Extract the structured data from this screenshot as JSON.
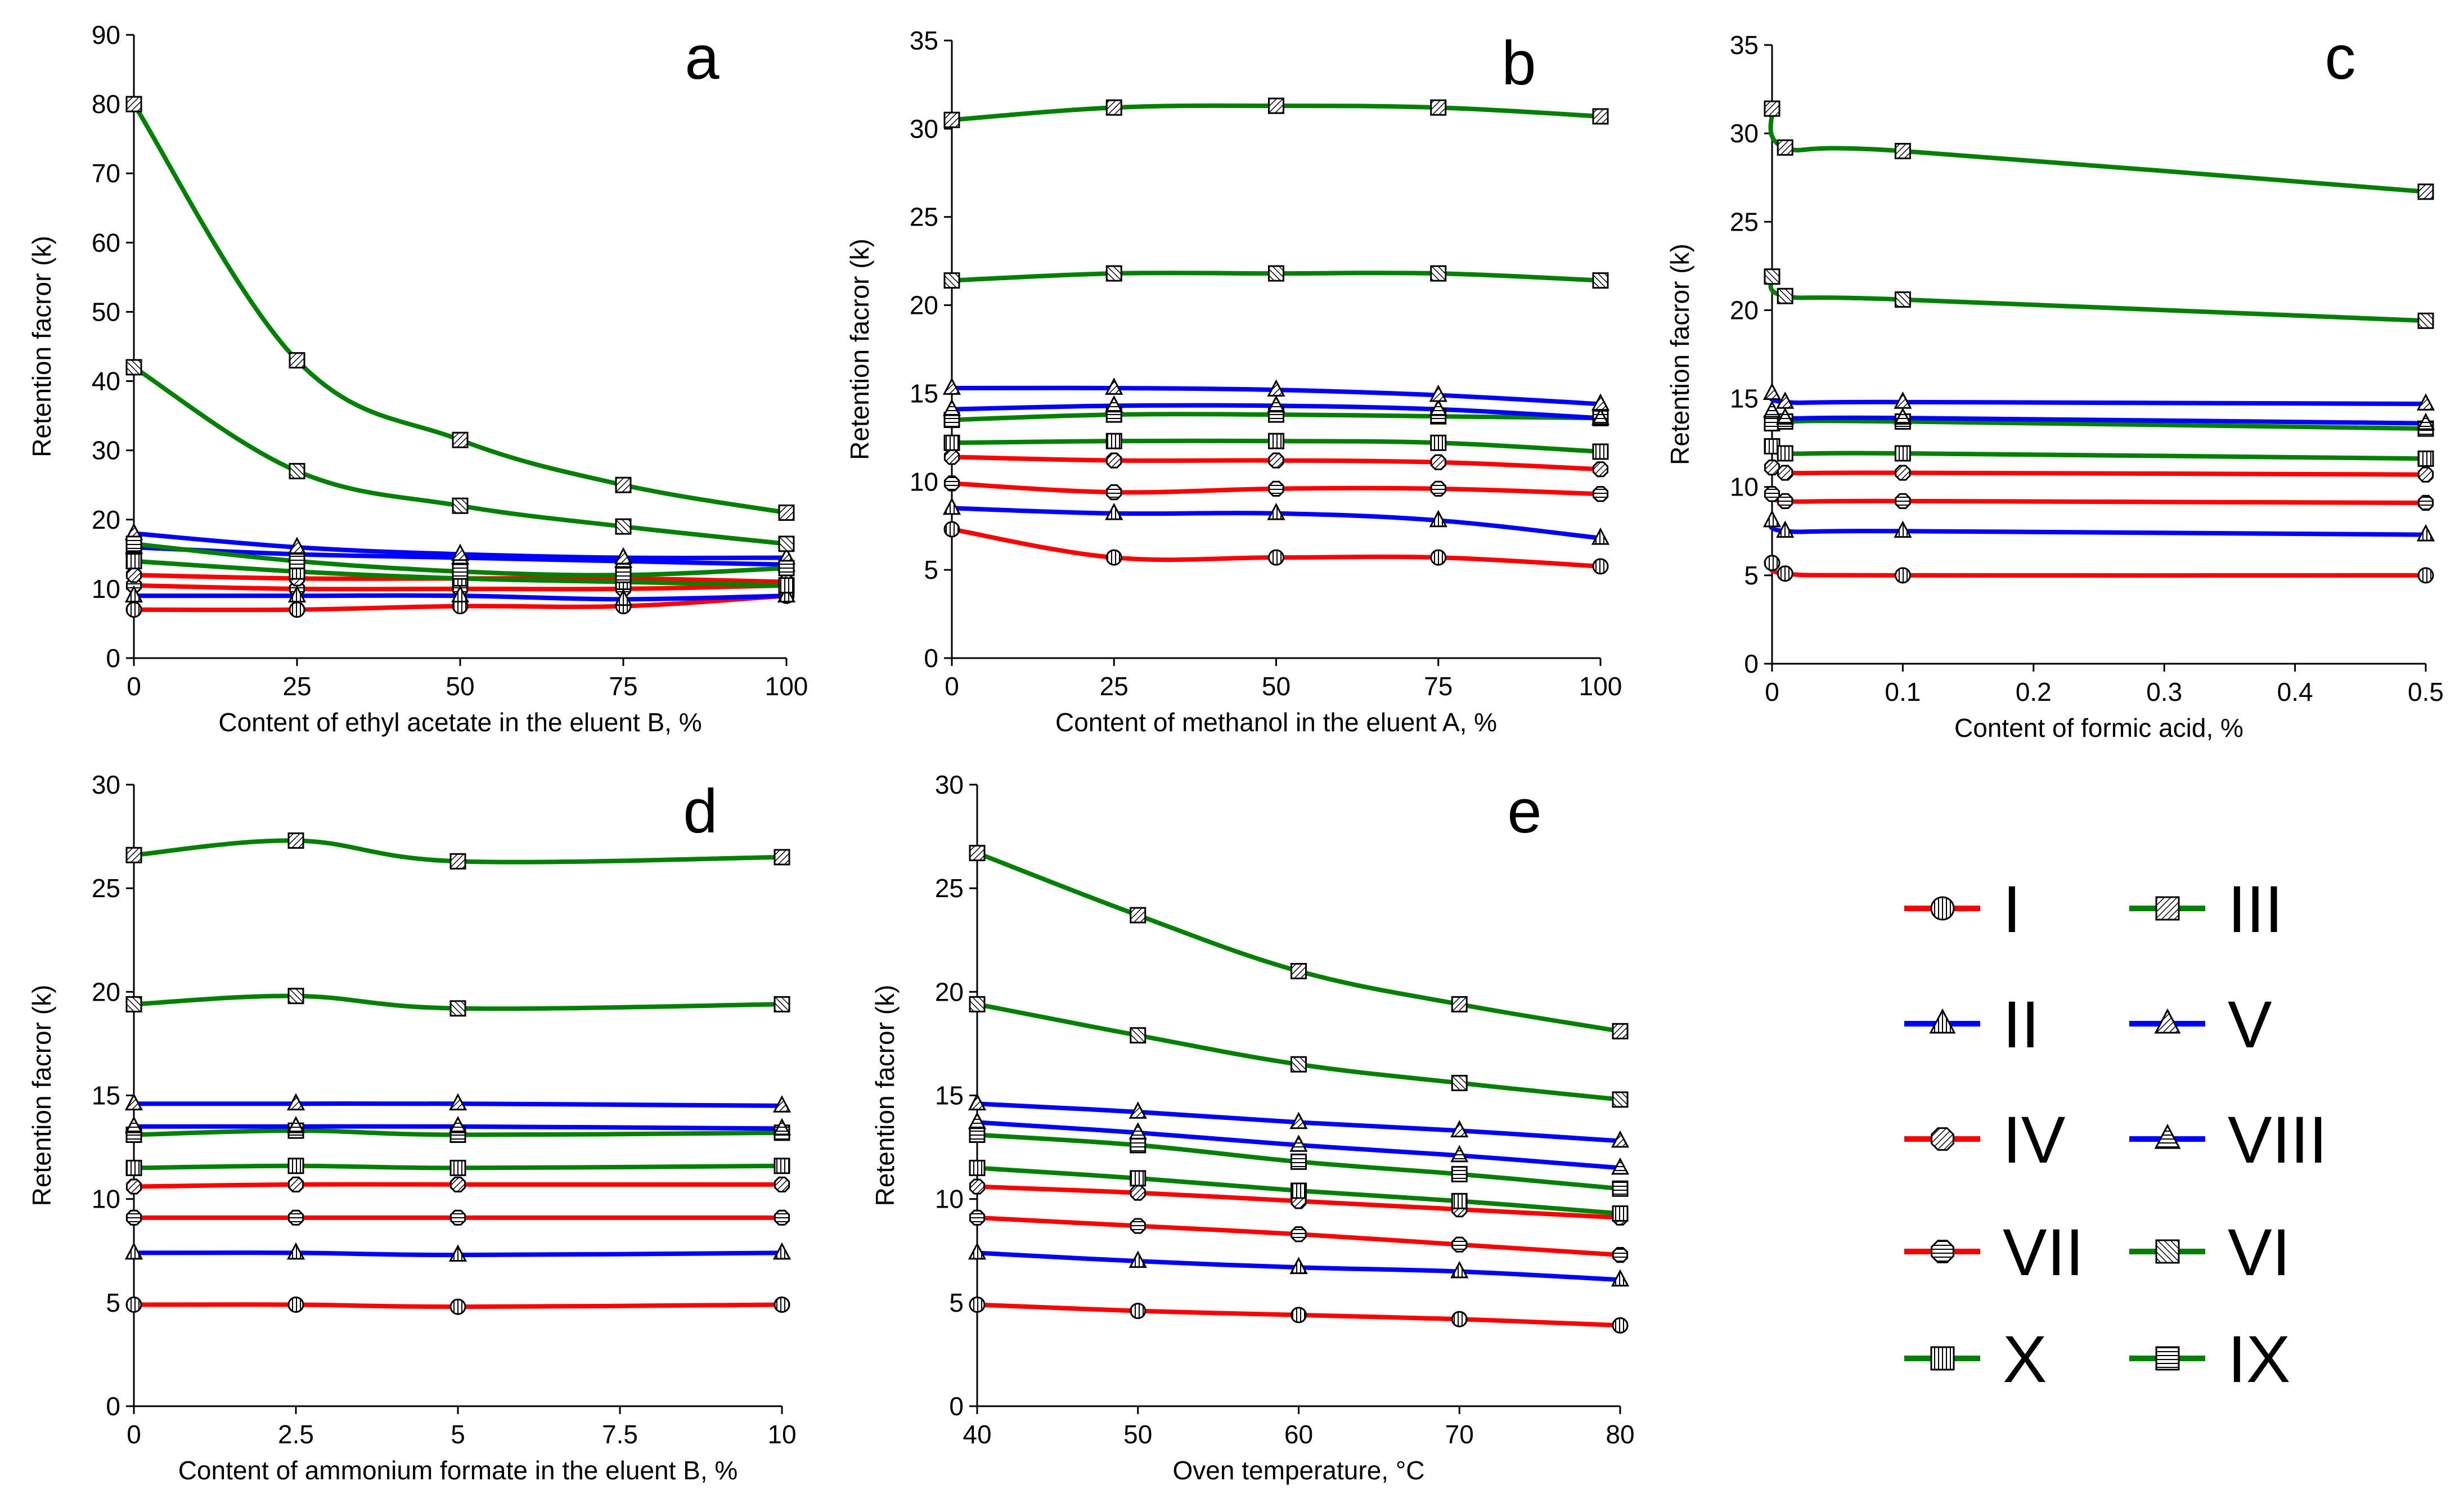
{
  "series_styles": {
    "I": {
      "color": "#ff0000",
      "marker": "circle",
      "hatch": "vlines"
    },
    "II": {
      "color": "#0000ff",
      "marker": "triangle",
      "hatch": "vlines"
    },
    "III": {
      "color": "#008000",
      "marker": "square",
      "hatch": "diag"
    },
    "IV": {
      "color": "#ff0000",
      "marker": "octagon",
      "hatch": "diag"
    },
    "V": {
      "color": "#0000ff",
      "marker": "triangle",
      "hatch": "diag"
    },
    "VI": {
      "color": "#008000",
      "marker": "square",
      "hatch": "diag2"
    },
    "VII": {
      "color": "#ff0000",
      "marker": "octagon",
      "hatch": "hlines"
    },
    "VIII": {
      "color": "#0000ff",
      "marker": "triangle",
      "hatch": "hlines"
    },
    "IX": {
      "color": "#008000",
      "marker": "square",
      "hatch": "hlines"
    },
    "X": {
      "color": "#008000",
      "marker": "square",
      "hatch": "vlines"
    }
  },
  "legend": {
    "left": [
      "I",
      "II",
      "IV",
      "VII",
      "X"
    ],
    "right": [
      "III",
      "V",
      "VIII",
      "VI",
      "IX"
    ]
  },
  "chart_data": [
    {
      "id": "a",
      "type": "line",
      "letter": "a",
      "xlabel": "Content of ethyl acetate in the eluent B, %",
      "ylabel": "Retention facror (k)",
      "x": [
        0,
        25,
        50,
        75,
        100
      ],
      "xlim": [
        0,
        100
      ],
      "xticks": [
        0,
        25,
        50,
        75,
        100
      ],
      "xtick_labels": [
        "0",
        "25",
        "50",
        "75",
        "100"
      ],
      "ylim": [
        0,
        90
      ],
      "yticks": [
        0,
        10,
        20,
        30,
        40,
        50,
        60,
        70,
        80,
        90
      ],
      "series": [
        {
          "name": "I",
          "values": [
            7,
            7,
            7.5,
            7.5,
            9
          ]
        },
        {
          "name": "VII",
          "values": [
            10.5,
            10,
            10,
            10,
            10.5
          ]
        },
        {
          "name": "IV",
          "values": [
            12,
            11.5,
            11.5,
            11.5,
            11
          ]
        },
        {
          "name": "II",
          "values": [
            9,
            9,
            9,
            8.5,
            9
          ]
        },
        {
          "name": "VIII",
          "values": [
            16,
            15,
            14.5,
            14,
            13.5
          ]
        },
        {
          "name": "V",
          "values": [
            18,
            16,
            15,
            14.5,
            14.5
          ]
        },
        {
          "name": "X",
          "values": [
            14,
            12.5,
            11.5,
            11,
            10.5
          ]
        },
        {
          "name": "IX",
          "values": [
            16.5,
            14,
            12.5,
            12,
            13
          ]
        },
        {
          "name": "VI",
          "values": [
            42,
            27,
            22,
            19,
            16.5
          ]
        },
        {
          "name": "III",
          "values": [
            80,
            43,
            31.5,
            25,
            21
          ]
        }
      ]
    },
    {
      "id": "b",
      "type": "line",
      "letter": "b",
      "xlabel": "Content of methanol in the eluent A, %",
      "ylabel": "Retention facror (k)",
      "x": [
        0,
        25,
        50,
        75,
        100
      ],
      "xlim": [
        0,
        100
      ],
      "xticks": [
        0,
        25,
        50,
        75,
        100
      ],
      "xtick_labels": [
        "0",
        "25",
        "50",
        "75",
        "100"
      ],
      "ylim": [
        0,
        35
      ],
      "yticks": [
        0,
        5,
        10,
        15,
        20,
        25,
        30,
        35
      ],
      "series": [
        {
          "name": "I",
          "values": [
            7.3,
            5.7,
            5.7,
            5.7,
            5.2
          ]
        },
        {
          "name": "II",
          "values": [
            8.5,
            8.2,
            8.2,
            7.8,
            6.8
          ]
        },
        {
          "name": "VII",
          "values": [
            9.9,
            9.4,
            9.6,
            9.6,
            9.3
          ]
        },
        {
          "name": "IV",
          "values": [
            11.4,
            11.2,
            11.2,
            11.1,
            10.7
          ]
        },
        {
          "name": "X",
          "values": [
            12.2,
            12.3,
            12.3,
            12.2,
            11.7
          ]
        },
        {
          "name": "IX",
          "values": [
            13.5,
            13.8,
            13.8,
            13.7,
            13.6
          ]
        },
        {
          "name": "VIII",
          "values": [
            14.1,
            14.3,
            14.3,
            14.1,
            13.6
          ]
        },
        {
          "name": "V",
          "values": [
            15.3,
            15.3,
            15.2,
            14.9,
            14.4
          ]
        },
        {
          "name": "VI",
          "values": [
            21.4,
            21.8,
            21.8,
            21.8,
            21.4
          ]
        },
        {
          "name": "III",
          "values": [
            30.5,
            31.2,
            31.3,
            31.2,
            30.7
          ]
        }
      ]
    },
    {
      "id": "c",
      "type": "line",
      "letter": "c",
      "xlabel": "Content of formic acid, %",
      "ylabel": "Retention facror (k)",
      "x": [
        0,
        0.01,
        0.1,
        0.5
      ],
      "xlim": [
        0,
        0.5
      ],
      "xticks": [
        0,
        0.1,
        0.2,
        0.3,
        0.4,
        0.5
      ],
      "xtick_labels": [
        "0",
        "0.1",
        "0.2",
        "0.3",
        "0.4",
        "0.5"
      ],
      "ylim": [
        0,
        35
      ],
      "yticks": [
        0,
        5,
        10,
        15,
        20,
        25,
        30,
        35
      ],
      "series": [
        {
          "name": "I",
          "values": [
            5.7,
            5.1,
            5.0,
            5.0
          ]
        },
        {
          "name": "II",
          "values": [
            8.1,
            7.5,
            7.5,
            7.3
          ]
        },
        {
          "name": "VII",
          "values": [
            9.6,
            9.2,
            9.2,
            9.1
          ]
        },
        {
          "name": "IV",
          "values": [
            11.1,
            10.8,
            10.8,
            10.7
          ]
        },
        {
          "name": "X",
          "values": [
            12.3,
            11.9,
            11.9,
            11.6
          ]
        },
        {
          "name": "IX",
          "values": [
            13.6,
            13.7,
            13.7,
            13.3
          ]
        },
        {
          "name": "VIII",
          "values": [
            14.3,
            13.9,
            13.9,
            13.6
          ]
        },
        {
          "name": "V",
          "values": [
            15.3,
            14.8,
            14.8,
            14.7
          ]
        },
        {
          "name": "VI",
          "values": [
            21.9,
            20.8,
            20.6,
            19.4
          ]
        },
        {
          "name": "III",
          "values": [
            31.4,
            29.2,
            29.0,
            26.7
          ]
        }
      ]
    },
    {
      "id": "d",
      "type": "line",
      "letter": "d",
      "xlabel": "Content of ammonium formate in the eluent B, %",
      "ylabel": "Retention facror (k)",
      "x": [
        0,
        2.5,
        5,
        10
      ],
      "xlim": [
        0,
        10
      ],
      "xticks": [
        0,
        2.5,
        5,
        7.5,
        10
      ],
      "xtick_labels": [
        "0",
        "2.5",
        "5",
        "7.5",
        "10"
      ],
      "ylim": [
        0,
        30
      ],
      "yticks": [
        0,
        5,
        10,
        15,
        20,
        25,
        30
      ],
      "series": [
        {
          "name": "I",
          "values": [
            4.9,
            4.9,
            4.8,
            4.9
          ]
        },
        {
          "name": "II",
          "values": [
            7.4,
            7.4,
            7.3,
            7.4
          ]
        },
        {
          "name": "VII",
          "values": [
            9.1,
            9.1,
            9.1,
            9.1
          ]
        },
        {
          "name": "IV",
          "values": [
            10.6,
            10.7,
            10.7,
            10.7
          ]
        },
        {
          "name": "X",
          "values": [
            11.5,
            11.6,
            11.5,
            11.6
          ]
        },
        {
          "name": "IX",
          "values": [
            13.1,
            13.3,
            13.1,
            13.2
          ]
        },
        {
          "name": "VIII",
          "values": [
            13.5,
            13.5,
            13.5,
            13.4
          ]
        },
        {
          "name": "V",
          "values": [
            14.6,
            14.6,
            14.6,
            14.5
          ]
        },
        {
          "name": "VI",
          "values": [
            19.4,
            19.8,
            19.2,
            19.4
          ]
        },
        {
          "name": "III",
          "values": [
            26.6,
            27.3,
            26.3,
            26.5
          ]
        }
      ]
    },
    {
      "id": "e",
      "type": "line",
      "letter": "e",
      "xlabel": "Oven temperature, °C",
      "ylabel": "Retention facror (k)",
      "x": [
        40,
        50,
        60,
        70,
        80
      ],
      "xlim": [
        40,
        80
      ],
      "xticks": [
        40,
        50,
        60,
        70,
        80
      ],
      "xtick_labels": [
        "40",
        "50",
        "60",
        "70",
        "80"
      ],
      "ylim": [
        0,
        30
      ],
      "yticks": [
        0,
        5,
        10,
        15,
        20,
        25,
        30
      ],
      "series": [
        {
          "name": "I",
          "values": [
            4.9,
            4.6,
            4.4,
            4.2,
            3.9
          ]
        },
        {
          "name": "II",
          "values": [
            7.4,
            7.0,
            6.7,
            6.5,
            6.1
          ]
        },
        {
          "name": "VII",
          "values": [
            9.1,
            8.7,
            8.3,
            7.8,
            7.3
          ]
        },
        {
          "name": "IV",
          "values": [
            10.6,
            10.3,
            9.9,
            9.5,
            9.1
          ]
        },
        {
          "name": "X",
          "values": [
            11.5,
            11.0,
            10.4,
            9.9,
            9.3
          ]
        },
        {
          "name": "IX",
          "values": [
            13.1,
            12.6,
            11.8,
            11.2,
            10.5
          ]
        },
        {
          "name": "VIII",
          "values": [
            13.7,
            13.2,
            12.6,
            12.1,
            11.5
          ]
        },
        {
          "name": "V",
          "values": [
            14.6,
            14.2,
            13.7,
            13.3,
            12.8
          ]
        },
        {
          "name": "VI",
          "values": [
            19.4,
            17.9,
            16.5,
            15.6,
            14.8
          ]
        },
        {
          "name": "III",
          "values": [
            26.7,
            23.7,
            21.0,
            19.4,
            18.1
          ]
        }
      ]
    }
  ]
}
